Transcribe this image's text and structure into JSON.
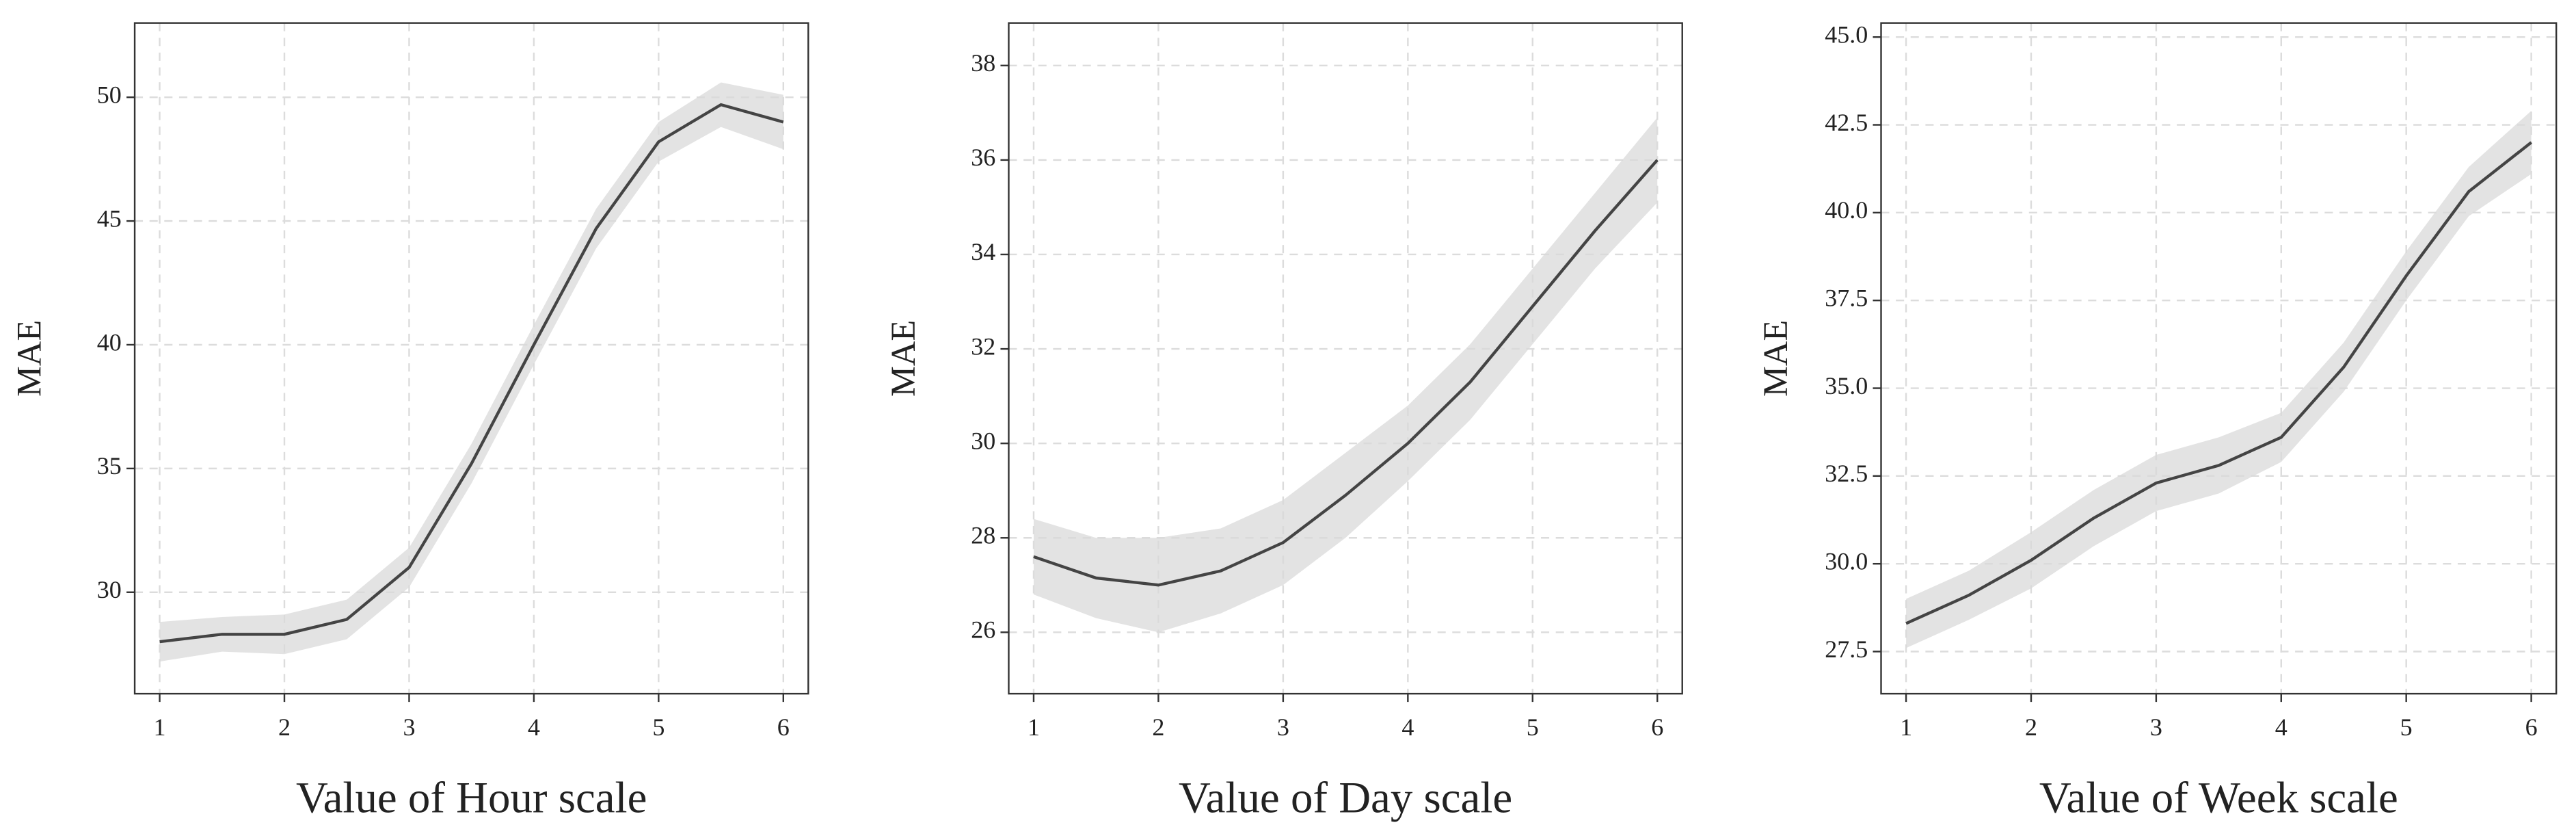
{
  "chart_data": [
    {
      "type": "line",
      "xlabel": "Value of Hour scale",
      "ylabel": "MAE",
      "x": [
        1,
        1.5,
        2,
        2.5,
        3,
        3.5,
        4,
        4.5,
        5,
        5.5,
        6
      ],
      "values": [
        28.0,
        28.3,
        28.3,
        28.9,
        31.0,
        35.2,
        40.0,
        44.7,
        48.2,
        49.7,
        49.0
      ],
      "lower": [
        27.2,
        27.6,
        27.5,
        28.1,
        30.2,
        34.4,
        39.2,
        43.9,
        47.4,
        48.8,
        47.9
      ],
      "upper": [
        28.8,
        29.0,
        29.1,
        29.7,
        31.8,
        36.0,
        40.8,
        45.5,
        49.0,
        50.6,
        50.1
      ],
      "color": "#444444",
      "band_color": "#d9d9d9",
      "xlim": [
        0.8,
        6.2
      ],
      "ylim": [
        25.9,
        53.0
      ],
      "xticks": [
        1,
        2,
        3,
        4,
        5,
        6
      ],
      "yticks": [
        30,
        35,
        40,
        45,
        50
      ],
      "grid": true
    },
    {
      "type": "line",
      "xlabel": "Value of Day scale",
      "ylabel": "MAE",
      "x": [
        1,
        1.5,
        2,
        2.5,
        3,
        3.5,
        4,
        4.5,
        5,
        5.5,
        6
      ],
      "values": [
        27.6,
        27.15,
        27.0,
        27.3,
        27.9,
        28.9,
        30.0,
        31.3,
        32.9,
        34.5,
        36.0
      ],
      "lower": [
        26.8,
        26.3,
        26.0,
        26.4,
        27.0,
        28.0,
        29.2,
        30.5,
        32.1,
        33.7,
        35.1
      ],
      "upper": [
        28.4,
        28.0,
        28.0,
        28.2,
        28.8,
        29.8,
        30.8,
        32.1,
        33.7,
        35.3,
        36.9
      ],
      "color": "#444444",
      "band_color": "#d9d9d9",
      "xlim": [
        0.8,
        6.2
      ],
      "ylim": [
        24.7,
        38.9
      ],
      "xticks": [
        1,
        2,
        3,
        4,
        5,
        6
      ],
      "yticks": [
        26,
        28,
        30,
        32,
        34,
        36,
        38
      ],
      "grid": true
    },
    {
      "type": "line",
      "xlabel": "Value of Week scale",
      "ylabel": "MAE",
      "x": [
        1,
        1.5,
        2,
        2.5,
        3,
        3.5,
        4,
        4.5,
        5,
        5.5,
        6
      ],
      "values": [
        28.3,
        29.1,
        30.1,
        31.3,
        32.3,
        32.8,
        33.6,
        35.6,
        38.2,
        40.6,
        42.0
      ],
      "lower": [
        27.6,
        28.4,
        29.3,
        30.5,
        31.5,
        32.0,
        32.9,
        34.9,
        37.5,
        39.9,
        41.1
      ],
      "upper": [
        29.0,
        29.8,
        30.9,
        32.1,
        33.1,
        33.6,
        34.3,
        36.3,
        38.9,
        41.3,
        42.9
      ],
      "color": "#444444",
      "band_color": "#d9d9d9",
      "xlim": [
        0.8,
        6.2
      ],
      "ylim": [
        26.3,
        45.4
      ],
      "xticks": [
        1,
        2,
        3,
        4,
        5,
        6
      ],
      "yticks": [
        {
          "value": 27.5,
          "label": "27.5"
        },
        {
          "value": 30,
          "label": "30.0"
        },
        {
          "value": 32.5,
          "label": "32.5"
        },
        {
          "value": 35,
          "label": "35.0"
        },
        {
          "value": 37.5,
          "label": "37.5"
        },
        {
          "value": 40,
          "label": "40.0"
        },
        {
          "value": 42.5,
          "label": "42.5"
        },
        {
          "value": 45,
          "label": "45.0"
        }
      ],
      "grid": true
    }
  ]
}
